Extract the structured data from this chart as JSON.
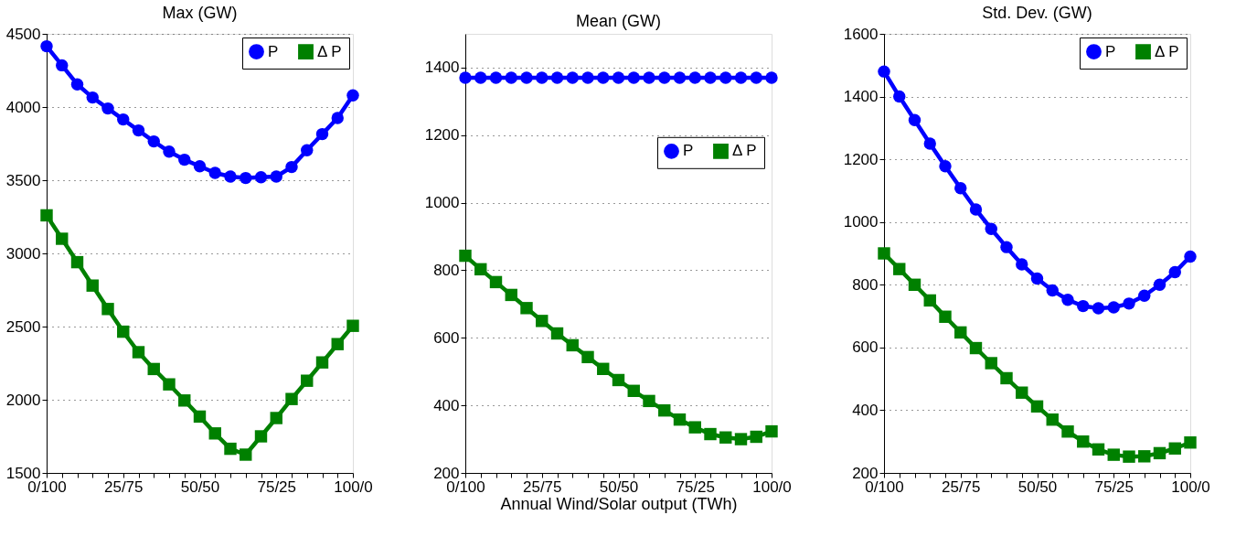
{
  "chart_data": [
    {
      "type": "line",
      "title": "Max (GW)",
      "categories": [
        "0/100",
        null,
        null,
        null,
        null,
        "25/75",
        null,
        null,
        null,
        null,
        "50/50",
        null,
        null,
        null,
        null,
        "75/25",
        null,
        null,
        null,
        null,
        "100/0"
      ],
      "ylim": [
        1500,
        4500
      ],
      "yticks": [
        1500,
        2000,
        2500,
        3000,
        3500,
        4000,
        4500
      ],
      "grid": "y",
      "legend": "top right",
      "line_style": "solid",
      "series": [
        {
          "name": "P",
          "color": "#0000ff",
          "marker": "circle",
          "values": [
            4415,
            4285,
            4155,
            4065,
            3990,
            3915,
            3840,
            3765,
            3695,
            3640,
            3595,
            3550,
            3525,
            3515,
            3520,
            3525,
            3590,
            3705,
            3815,
            3925,
            4080
          ]
        },
        {
          "name": "Δ P",
          "color": "#008000",
          "marker": "square",
          "values": [
            3260,
            3100,
            2940,
            2780,
            2620,
            2465,
            2325,
            2210,
            2105,
            1995,
            1885,
            1770,
            1665,
            1625,
            1750,
            1875,
            2005,
            2130,
            2255,
            2380,
            2505
          ]
        }
      ]
    },
    {
      "type": "line",
      "title": "Mean (GW)",
      "xlabel": "Annual Wind/Solar output (TWh)",
      "categories": [
        "0/100",
        null,
        null,
        null,
        null,
        "25/75",
        null,
        null,
        null,
        null,
        "50/50",
        null,
        null,
        null,
        null,
        "75/25",
        null,
        null,
        null,
        null,
        "100/0"
      ],
      "ylim": [
        200,
        1500
      ],
      "yticks": [
        200,
        400,
        600,
        800,
        1000,
        1200,
        1400
      ],
      "grid": "y",
      "legend": "right",
      "line_style": "solid",
      "series": [
        {
          "name": "P",
          "color": "#0000ff",
          "marker": "circle",
          "values": [
            1370,
            1370,
            1370,
            1370,
            1370,
            1370,
            1370,
            1370,
            1370,
            1370,
            1370,
            1370,
            1370,
            1370,
            1370,
            1370,
            1370,
            1370,
            1370,
            1370,
            1370
          ]
        },
        {
          "name": "Δ P",
          "color": "#008000",
          "marker": "square",
          "values": [
            843,
            803,
            765,
            727,
            688,
            650,
            613,
            578,
            543,
            508,
            475,
            443,
            413,
            385,
            358,
            335,
            315,
            305,
            300,
            307,
            323
          ]
        }
      ]
    },
    {
      "type": "line",
      "title": "Std. Dev. (GW)",
      "categories": [
        "0/100",
        null,
        null,
        null,
        null,
        "25/75",
        null,
        null,
        null,
        null,
        "50/50",
        null,
        null,
        null,
        null,
        "75/25",
        null,
        null,
        null,
        null,
        "100/0"
      ],
      "ylim": [
        200,
        1600
      ],
      "yticks": [
        200,
        400,
        600,
        800,
        1000,
        1200,
        1400,
        1600
      ],
      "grid": "y",
      "legend": "top right",
      "line_style": "solid",
      "series": [
        {
          "name": "P",
          "color": "#0000ff",
          "marker": "circle",
          "values": [
            1480,
            1400,
            1325,
            1250,
            1178,
            1108,
            1040,
            978,
            920,
            865,
            820,
            782,
            752,
            732,
            725,
            728,
            740,
            765,
            800,
            840,
            890
          ]
        },
        {
          "name": "Δ P",
          "color": "#008000",
          "marker": "square",
          "values": [
            900,
            850,
            800,
            750,
            698,
            648,
            598,
            550,
            502,
            456,
            412,
            370,
            332,
            300,
            275,
            258,
            252,
            253,
            263,
            278,
            297
          ]
        }
      ]
    }
  ]
}
